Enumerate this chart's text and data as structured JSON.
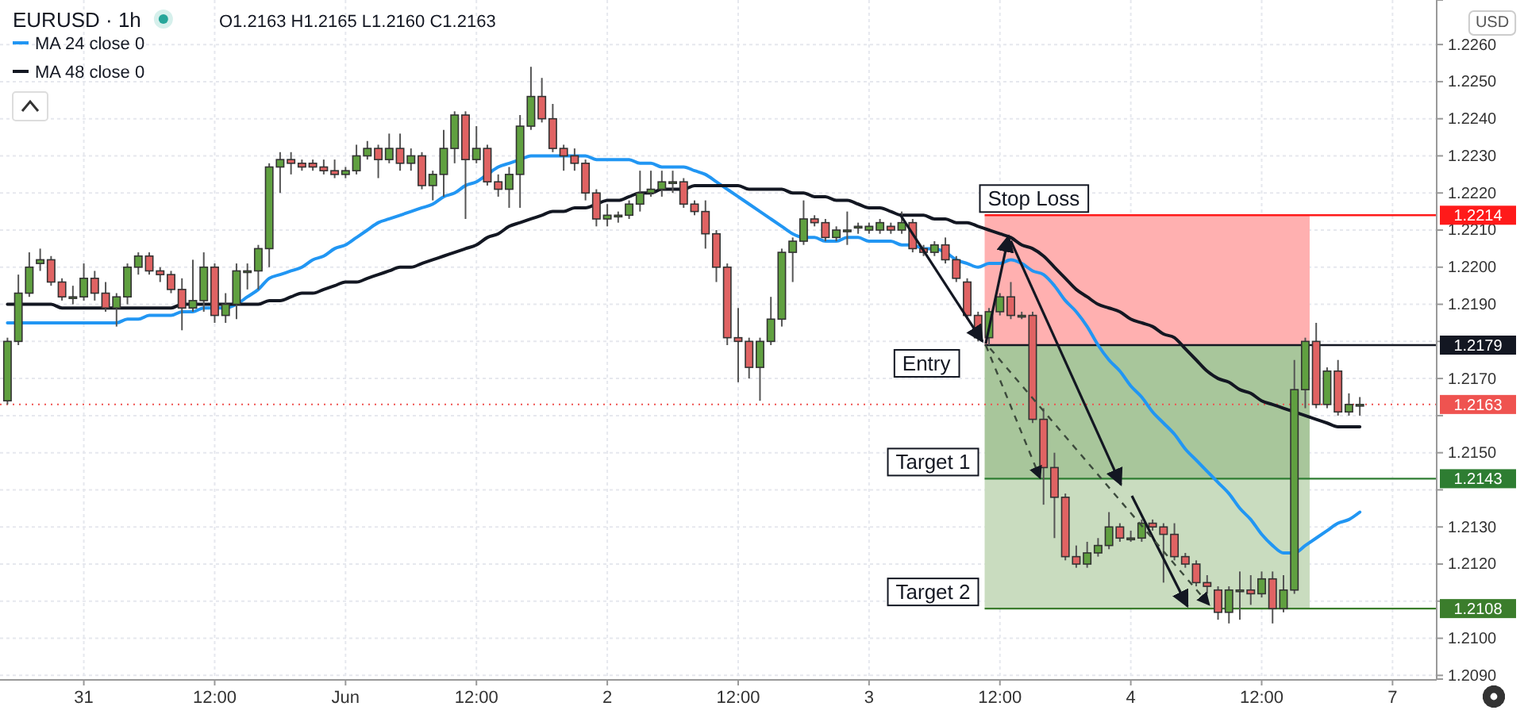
{
  "chart_data": {
    "type": "candlestick",
    "title": "EURUSD · 1h",
    "annotations": [
      "O1.2163 H1.2165 L1.2160 C1.2163",
      "USD",
      {
        "text": "Stop Loss",
        "y": 1.2214
      },
      "Entry",
      "Target 1",
      "Target 2"
    ],
    "categories": [
      null,
      null,
      null,
      null,
      null,
      null,
      null,
      "31",
      null,
      null,
      null,
      null,
      null,
      null,
      null,
      null,
      null,
      null,
      null,
      "12:00",
      null,
      null,
      null,
      null,
      null,
      null,
      null,
      null,
      null,
      null,
      null,
      "Jun",
      null,
      null,
      null,
      null,
      null,
      null,
      null,
      null,
      null,
      null,
      null,
      "12:00",
      null,
      null,
      null,
      null,
      null,
      null,
      null,
      null,
      null,
      null,
      null,
      "2",
      null,
      null,
      null,
      null,
      null,
      null,
      null,
      null,
      null,
      null,
      null,
      "12:00",
      null,
      null,
      null,
      null,
      null,
      null,
      null,
      null,
      null,
      null,
      null,
      "3",
      null,
      null,
      null,
      null,
      null,
      null,
      null,
      null,
      null,
      null,
      null,
      "12:00",
      null,
      null,
      null,
      null,
      null,
      null,
      null,
      null,
      null,
      null,
      null,
      "4",
      null,
      null,
      null,
      null,
      null,
      null,
      null,
      null,
      null,
      null,
      null,
      "12:00",
      null,
      null,
      null,
      null,
      null,
      null,
      null,
      null,
      null,
      null,
      null,
      "7"
    ],
    "ohlc": [
      [
        1.2164,
        1.2181,
        1.2163,
        1.218
      ],
      [
        1.218,
        1.2198,
        1.2179,
        1.2193
      ],
      [
        1.2193,
        1.2204,
        1.2192,
        1.22
      ],
      [
        1.2201,
        1.2205,
        1.2199,
        1.2202
      ],
      [
        1.2202,
        1.2203,
        1.2195,
        1.2196
      ],
      [
        1.2196,
        1.2197,
        1.2191,
        1.2192
      ],
      [
        1.2192,
        1.2195,
        1.219,
        1.2192
      ],
      [
        1.2192,
        1.2201,
        1.2191,
        1.2197
      ],
      [
        1.2197,
        1.2199,
        1.2191,
        1.2193
      ],
      [
        1.2193,
        1.2196,
        1.2188,
        1.2189
      ],
      [
        1.2189,
        1.2193,
        1.2184,
        1.2192
      ],
      [
        1.2192,
        1.2201,
        1.219,
        1.22
      ],
      [
        1.22,
        1.2204,
        1.2198,
        1.2203
      ],
      [
        1.2203,
        1.2204,
        1.2198,
        1.2199
      ],
      [
        1.2199,
        1.22,
        1.2196,
        1.2198
      ],
      [
        1.2198,
        1.2199,
        1.2193,
        1.2194
      ],
      [
        1.2194,
        1.2197,
        1.2183,
        1.2189
      ],
      [
        1.2189,
        1.2202,
        1.2188,
        1.2191
      ],
      [
        1.2191,
        1.2204,
        1.2188,
        1.22
      ],
      [
        1.22,
        1.2201,
        1.2185,
        1.2187
      ],
      [
        1.2187,
        1.2193,
        1.2185,
        1.219
      ],
      [
        1.219,
        1.2201,
        1.2186,
        1.2199
      ],
      [
        1.2199,
        1.2201,
        1.2194,
        1.2199
      ],
      [
        1.2199,
        1.2206,
        1.2194,
        1.2205
      ],
      [
        1.2205,
        1.2228,
        1.22,
        1.2227
      ],
      [
        1.2227,
        1.2231,
        1.222,
        1.2229
      ],
      [
        1.2229,
        1.2231,
        1.2225,
        1.2228
      ],
      [
        1.2228,
        1.2229,
        1.2226,
        1.2227
      ],
      [
        1.2228,
        1.2229,
        1.2226,
        1.2227
      ],
      [
        1.2227,
        1.2229,
        1.2225,
        1.2226
      ],
      [
        1.2226,
        1.2229,
        1.2224,
        1.2225
      ],
      [
        1.2225,
        1.2227,
        1.2224,
        1.2226
      ],
      [
        1.2226,
        1.2233,
        1.2225,
        1.223
      ],
      [
        1.223,
        1.2234,
        1.2229,
        1.2232
      ],
      [
        1.2232,
        1.2233,
        1.2224,
        1.2229
      ],
      [
        1.2229,
        1.2236,
        1.2228,
        1.2232
      ],
      [
        1.2232,
        1.2236,
        1.2226,
        1.2228
      ],
      [
        1.2228,
        1.2232,
        1.2226,
        1.223
      ],
      [
        1.223,
        1.2231,
        1.2221,
        1.2222
      ],
      [
        1.2222,
        1.2226,
        1.2218,
        1.2225
      ],
      [
        1.2225,
        1.2237,
        1.2219,
        1.2232
      ],
      [
        1.2232,
        1.2242,
        1.2228,
        1.2241
      ],
      [
        1.2241,
        1.2242,
        1.2213,
        1.2229
      ],
      [
        1.2229,
        1.2238,
        1.2228,
        1.2232
      ],
      [
        1.2232,
        1.2233,
        1.2222,
        1.2223
      ],
      [
        1.2223,
        1.2225,
        1.2219,
        1.2221
      ],
      [
        1.2221,
        1.2227,
        1.2216,
        1.2225
      ],
      [
        1.2225,
        1.2241,
        1.2216,
        1.2238
      ],
      [
        1.2238,
        1.2254,
        1.2237,
        1.2246
      ],
      [
        1.2246,
        1.2251,
        1.2239,
        1.224
      ],
      [
        1.224,
        1.2244,
        1.2231,
        1.2232
      ],
      [
        1.2232,
        1.2233,
        1.2226,
        1.223
      ],
      [
        1.223,
        1.2232,
        1.2226,
        1.2228
      ],
      [
        1.2228,
        1.2229,
        1.2218,
        1.222
      ],
      [
        1.222,
        1.2221,
        1.2211,
        1.2213
      ],
      [
        1.2213,
        1.2217,
        1.2211,
        1.2214
      ],
      [
        1.2214,
        1.2215,
        1.2212,
        1.2214
      ],
      [
        1.2214,
        1.2218,
        1.2213,
        1.2217
      ],
      [
        1.2217,
        1.2226,
        1.2215,
        1.222
      ],
      [
        1.222,
        1.2226,
        1.2219,
        1.2221
      ],
      [
        1.2221,
        1.2226,
        1.2219,
        1.2223
      ],
      [
        1.2223,
        1.2226,
        1.222,
        1.2223
      ],
      [
        1.2223,
        1.2224,
        1.2216,
        1.2217
      ],
      [
        1.2217,
        1.2218,
        1.2214,
        1.2215
      ],
      [
        1.2215,
        1.2218,
        1.2205,
        1.2209
      ],
      [
        1.2209,
        1.221,
        1.2196,
        1.22
      ],
      [
        1.22,
        1.2201,
        1.2179,
        1.2181
      ],
      [
        1.2181,
        1.2189,
        1.2169,
        1.218
      ],
      [
        1.218,
        1.2181,
        1.217,
        1.2173
      ],
      [
        1.2173,
        1.2181,
        1.2164,
        1.218
      ],
      [
        1.218,
        1.2192,
        1.2179,
        1.2186
      ],
      [
        1.2186,
        1.2205,
        1.2184,
        1.2204
      ],
      [
        1.2204,
        1.2208,
        1.2196,
        1.2207
      ],
      [
        1.2207,
        1.2218,
        1.2206,
        1.2213
      ],
      [
        1.2213,
        1.2214,
        1.2211,
        1.2212
      ],
      [
        1.2212,
        1.2213,
        1.2207,
        1.2208
      ],
      [
        1.2208,
        1.2211,
        1.2207,
        1.221
      ],
      [
        1.221,
        1.2215,
        1.2206,
        1.221
      ],
      [
        1.2211,
        1.2212,
        1.2209,
        1.2211
      ],
      [
        1.221,
        1.2212,
        1.2209,
        1.2211
      ],
      [
        1.221,
        1.2213,
        1.2209,
        1.2212
      ],
      [
        1.2211,
        1.2212,
        1.2209,
        1.221
      ],
      [
        1.221,
        1.2215,
        1.2209,
        1.2212
      ],
      [
        1.2212,
        1.2213,
        1.2204,
        1.2205
      ],
      [
        1.2205,
        1.2206,
        1.2203,
        1.2204
      ],
      [
        1.2204,
        1.2207,
        1.2203,
        1.2206
      ],
      [
        1.2206,
        1.2208,
        1.2201,
        1.2202
      ],
      [
        1.2202,
        1.2203,
        1.2196,
        1.2197
      ],
      [
        1.2196,
        1.2197,
        1.2186,
        1.2187
      ],
      [
        1.2187,
        1.2188,
        1.218,
        1.2181
      ],
      [
        1.2181,
        1.2189,
        1.2179,
        1.2188
      ],
      [
        1.2188,
        1.2193,
        1.2187,
        1.2192
      ],
      [
        1.2192,
        1.2196,
        1.2186,
        1.2187
      ],
      [
        1.2187,
        1.2188,
        1.2186,
        1.2187
      ],
      [
        1.2187,
        1.2188,
        1.2158,
        1.2159
      ],
      [
        1.2159,
        1.2162,
        1.2136,
        1.2146
      ],
      [
        1.2146,
        1.215,
        1.2127,
        1.2138
      ],
      [
        1.2138,
        1.2139,
        1.2121,
        1.2122
      ],
      [
        1.2122,
        1.2125,
        1.2119,
        1.212
      ],
      [
        1.212,
        1.2126,
        1.2119,
        1.2123
      ],
      [
        1.2123,
        1.2127,
        1.2122,
        1.2125
      ],
      [
        1.2125,
        1.2134,
        1.2124,
        1.213
      ],
      [
        1.213,
        1.2131,
        1.2126,
        1.2127
      ],
      [
        1.2127,
        1.2129,
        1.2126,
        1.2127
      ],
      [
        1.2127,
        1.2132,
        1.2126,
        1.2131
      ],
      [
        1.2131,
        1.2132,
        1.2129,
        1.213
      ],
      [
        1.213,
        1.2131,
        1.2115,
        1.2128
      ],
      [
        1.2128,
        1.2131,
        1.2121,
        1.2122
      ],
      [
        1.2122,
        1.2123,
        1.2119,
        1.212
      ],
      [
        1.212,
        1.2121,
        1.2114,
        1.2115
      ],
      [
        1.2115,
        1.2117,
        1.2112,
        1.2114
      ],
      [
        1.2113,
        1.2114,
        1.2105,
        1.2107
      ],
      [
        1.2107,
        1.2114,
        1.2104,
        1.2113
      ],
      [
        1.2113,
        1.2118,
        1.2105,
        1.2113
      ],
      [
        1.2113,
        1.2117,
        1.2109,
        1.2112
      ],
      [
        1.2112,
        1.2118,
        1.2111,
        1.2116
      ],
      [
        1.2116,
        1.2118,
        1.2104,
        1.2108
      ],
      [
        1.2108,
        1.2117,
        1.2107,
        1.2113
      ],
      [
        1.2113,
        1.2175,
        1.2112,
        1.2167
      ],
      [
        1.2167,
        1.2181,
        1.2162,
        1.218
      ],
      [
        1.218,
        1.2185,
        1.2162,
        1.2163
      ],
      [
        1.2163,
        1.2173,
        1.2162,
        1.2172
      ],
      [
        1.2172,
        1.2175,
        1.216,
        1.2161
      ],
      [
        1.2161,
        1.2166,
        1.216,
        1.2163
      ],
      [
        1.2163,
        1.2165,
        1.216,
        1.2163
      ],
      null,
      null,
      null
    ],
    "series": [
      {
        "name": "MA 24 close 0",
        "type": "line",
        "color": "#2196f3",
        "values": [
          1.2185,
          1.2185,
          1.2185,
          1.2185,
          1.2185,
          1.2185,
          1.2185,
          1.2185,
          1.2185,
          1.2185,
          1.2185,
          1.2186,
          1.2186,
          1.2187,
          1.2187,
          1.2187,
          1.2188,
          1.2188,
          1.2189,
          1.2189,
          1.2189,
          1.219,
          1.2192,
          1.2194,
          1.2197,
          1.2198,
          1.2199,
          1.22,
          1.2202,
          1.2203,
          1.2205,
          1.2206,
          1.2208,
          1.221,
          1.2212,
          1.2213,
          1.2214,
          1.2215,
          1.2216,
          1.2217,
          1.2219,
          1.222,
          1.2222,
          1.2223,
          1.2225,
          1.2227,
          1.2228,
          1.2229,
          1.223,
          1.223,
          1.223,
          1.223,
          1.223,
          1.223,
          1.2229,
          1.2229,
          1.2229,
          1.2229,
          1.2228,
          1.2228,
          1.2227,
          1.2227,
          1.2227,
          1.2226,
          1.2225,
          1.2223,
          1.2221,
          1.2219,
          1.2217,
          1.2215,
          1.2213,
          1.2211,
          1.2209,
          1.2208,
          1.2208,
          1.2207,
          1.2207,
          1.2208,
          1.2208,
          1.2207,
          1.2207,
          1.2207,
          1.2206,
          1.2206,
          1.2205,
          1.2205,
          1.2204,
          1.2202,
          1.2201,
          1.22,
          1.2201,
          1.2201,
          1.2202,
          1.2201,
          1.2199,
          1.2198,
          1.2195,
          1.2191,
          1.2188,
          1.2184,
          1.2179,
          1.2175,
          1.2172,
          1.2168,
          1.2165,
          1.2161,
          1.2158,
          1.2155,
          1.2151,
          1.2148,
          1.2145,
          1.2142,
          1.2139,
          1.2135,
          1.2132,
          1.2128,
          1.2125,
          1.2123,
          1.2123,
          1.2125,
          1.2127,
          1.2129,
          1.2131,
          1.2132,
          1.2134,
          null,
          null,
          null
        ]
      },
      {
        "name": "MA 48 close 0",
        "type": "line",
        "color": "#131722",
        "values": [
          1.219,
          1.219,
          1.219,
          1.219,
          1.219,
          1.2189,
          1.2189,
          1.2189,
          1.2189,
          1.2189,
          1.2189,
          1.2189,
          1.2189,
          1.2189,
          1.2189,
          1.2189,
          1.219,
          1.219,
          1.219,
          1.219,
          1.219,
          1.219,
          1.219,
          1.219,
          1.2191,
          1.2191,
          1.2192,
          1.2193,
          1.2193,
          1.2194,
          1.2195,
          1.2196,
          1.2196,
          1.2197,
          1.2198,
          1.2199,
          1.22,
          1.22,
          1.2201,
          1.2202,
          1.2203,
          1.2204,
          1.2205,
          1.2206,
          1.2208,
          1.2209,
          1.2211,
          1.2212,
          1.2213,
          1.2214,
          1.2215,
          1.2215,
          1.2216,
          1.2216,
          1.2217,
          1.2218,
          1.2218,
          1.2219,
          1.222,
          1.222,
          1.2221,
          1.2221,
          1.2221,
          1.2222,
          1.2222,
          1.2222,
          1.2222,
          1.2222,
          1.2221,
          1.2221,
          1.2221,
          1.2221,
          1.222,
          1.222,
          1.2219,
          1.2219,
          1.2218,
          1.2218,
          1.2217,
          1.2216,
          1.2216,
          1.2215,
          1.2214,
          1.2214,
          1.2214,
          1.2213,
          1.2213,
          1.2212,
          1.2212,
          1.2211,
          1.221,
          1.2209,
          1.2208,
          1.2206,
          1.2205,
          1.2203,
          1.22,
          1.2197,
          1.2194,
          1.2192,
          1.219,
          1.2189,
          1.2188,
          1.2186,
          1.2185,
          1.2184,
          1.2182,
          1.2181,
          1.2178,
          1.2175,
          1.2172,
          1.217,
          1.2169,
          1.2167,
          1.2166,
          1.2164,
          1.2163,
          1.2162,
          1.2161,
          1.216,
          1.2159,
          1.2158,
          1.2157,
          1.2157,
          1.2157,
          null,
          null,
          null
        ]
      }
    ],
    "ylim": [
      1.2089,
      1.2272
    ],
    "yticks": [
      {
        "value": 1.209,
        "label": "1.2090"
      },
      {
        "value": 1.21,
        "label": "1.2100"
      },
      {
        "value": 1.211,
        "label": null
      },
      {
        "value": 1.212,
        "label": "1.2120"
      },
      {
        "value": 1.213,
        "label": "1.2130"
      },
      {
        "value": 1.214,
        "label": null
      },
      {
        "value": 1.215,
        "label": "1.2150"
      },
      {
        "value": 1.216,
        "label": null
      },
      {
        "value": 1.217,
        "label": "1.2170"
      },
      {
        "value": 1.218,
        "label": null
      },
      {
        "value": 1.219,
        "label": "1.2190"
      },
      {
        "value": 1.22,
        "label": "1.2200"
      },
      {
        "value": 1.221,
        "label": "1.2210"
      },
      {
        "value": 1.222,
        "label": "1.2220"
      },
      {
        "value": 1.223,
        "label": "1.2230"
      },
      {
        "value": 1.224,
        "label": "1.2240"
      },
      {
        "value": 1.225,
        "label": "1.2250"
      },
      {
        "value": 1.226,
        "label": "1.2260"
      }
    ],
    "grid": true,
    "legend": "top left",
    "bands": [
      {
        "axis": "y",
        "from": 1.2179,
        "to": 1.2214,
        "color": "#ffb0b0"
      },
      {
        "axis": "y",
        "from": 1.2143,
        "to": 1.2179,
        "color": "#a8c69b"
      },
      {
        "axis": "y",
        "from": 1.2108,
        "to": 1.2143,
        "color": "#c9dcbf"
      }
    ],
    "ref_lines": [
      {
        "axis": "y",
        "value": 1.2163,
        "label": "1.2163",
        "color": "#ef5350",
        "line_style": "dotted"
      },
      {
        "axis": "y",
        "value": 1.2214,
        "label": "1.2214",
        "color": "#ff1a1a",
        "line_style": "solid"
      },
      {
        "axis": "y",
        "value": 1.2179,
        "label": "1.2179",
        "color": "#131722",
        "line_style": "solid"
      },
      {
        "axis": "y",
        "value": 1.2143,
        "label": "1.2143",
        "color": "#2e7d32",
        "line_style": "solid"
      },
      {
        "axis": "y",
        "value": 1.2108,
        "label": "1.2108",
        "color": "#3b7d2c",
        "line_style": "solid"
      }
    ]
  }
}
